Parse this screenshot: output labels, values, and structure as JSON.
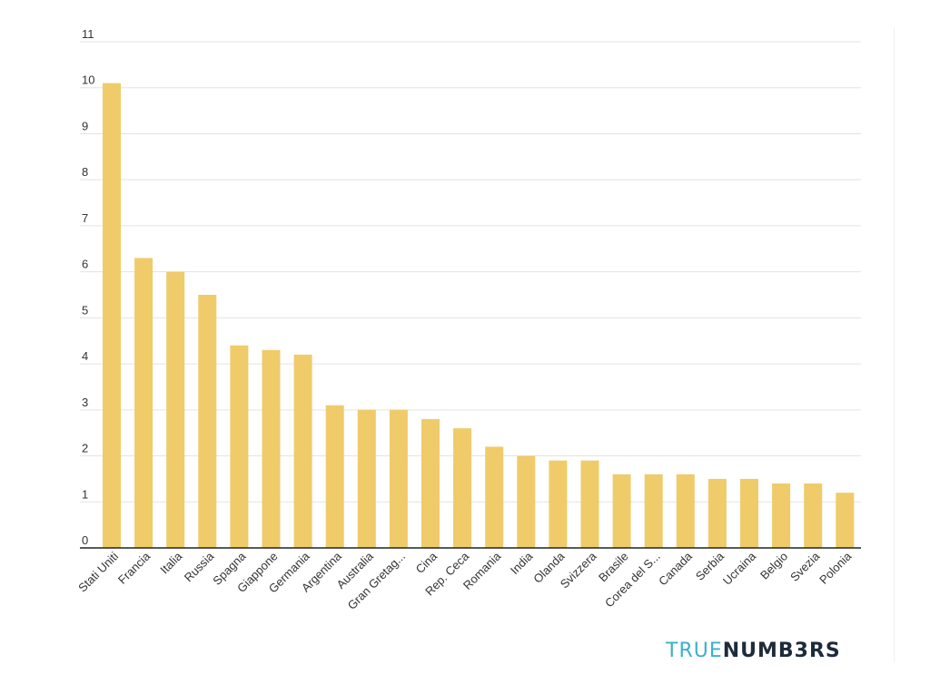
{
  "chart_data": {
    "type": "bar",
    "title": "",
    "xlabel": "",
    "ylabel": "",
    "ylim": [
      0,
      11
    ],
    "yticks": [
      0,
      1,
      2,
      3,
      4,
      5,
      6,
      7,
      8,
      9,
      10,
      11
    ],
    "grid": true,
    "bar_color": "#efcb6a",
    "categories": [
      "Stati Uniti",
      "Francia",
      "Italia",
      "Russia",
      "Spagna",
      "Giappone",
      "Germania",
      "Argentina",
      "Australia",
      "Gran Gretag...",
      "Cina",
      "Rep. Ceca",
      "Romania",
      "India",
      "Olanda",
      "Svizzera",
      "Brasile",
      "Corea del S...",
      "Canada",
      "Serbia",
      "Ucraina",
      "Belgio",
      "Svezia",
      "Polonia"
    ],
    "values": [
      10.1,
      6.3,
      6.0,
      5.5,
      4.4,
      4.3,
      4.2,
      3.1,
      3.0,
      3.0,
      2.8,
      2.6,
      2.2,
      2.0,
      1.9,
      1.9,
      1.6,
      1.6,
      1.6,
      1.5,
      1.5,
      1.4,
      1.4,
      1.2
    ]
  },
  "brand": {
    "part1": "TRUE",
    "part2": "NUMB3RS",
    "color1": "#3eb1c8",
    "color2": "#1d2b3a"
  }
}
